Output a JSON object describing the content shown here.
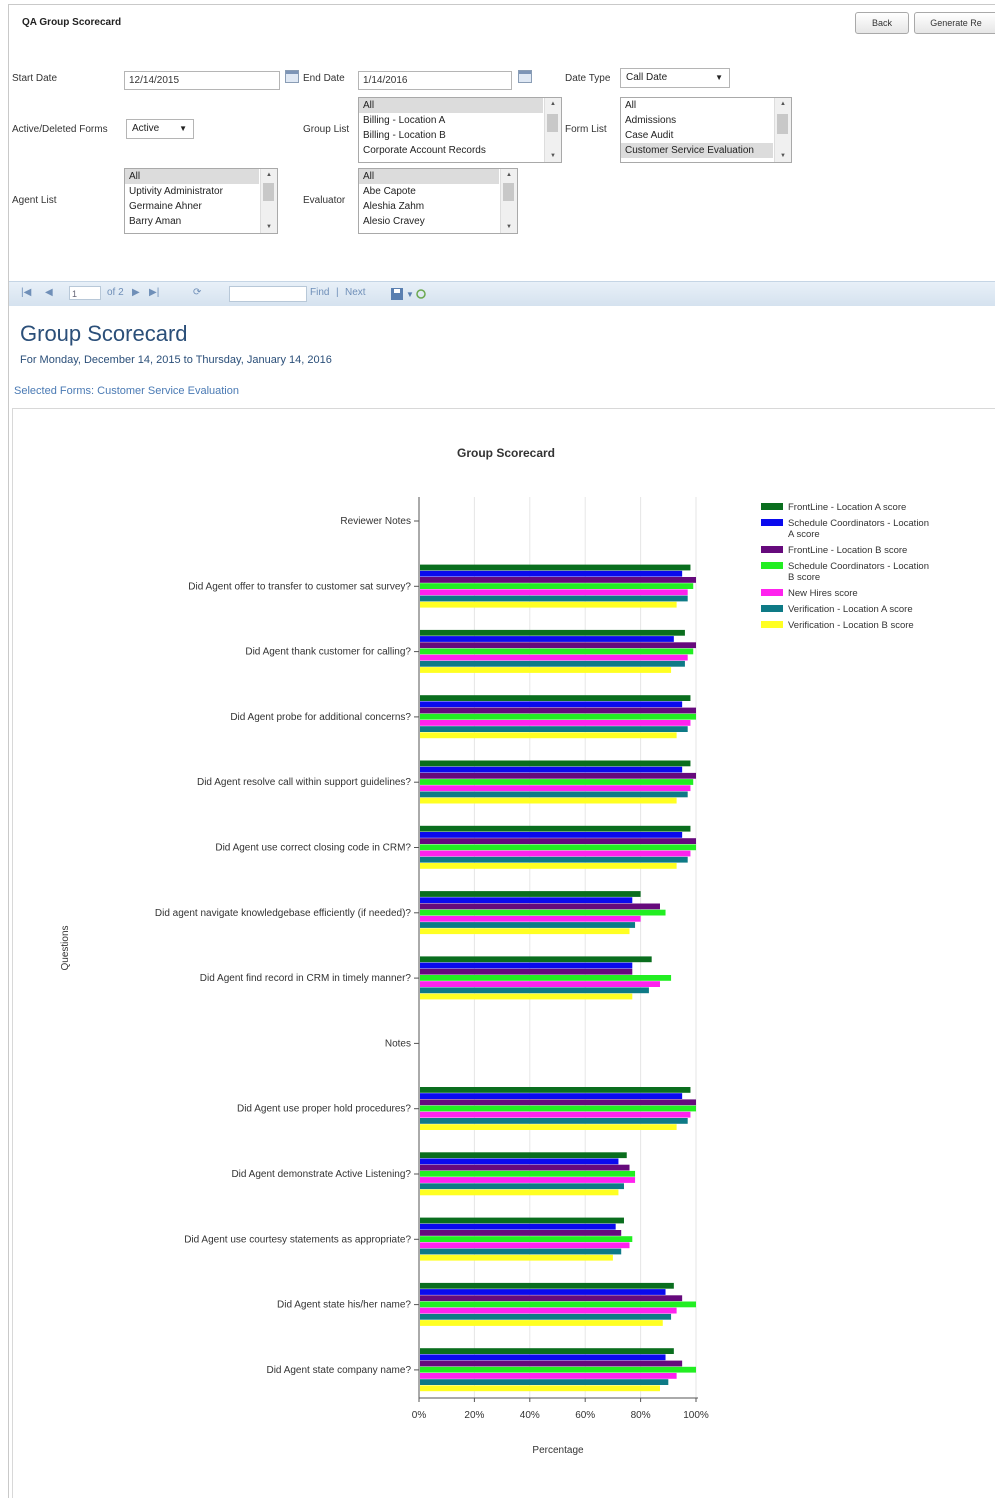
{
  "app": {
    "title": "QA Group Scorecard",
    "back_label": "Back",
    "generate_label": "Generate Re"
  },
  "filters": {
    "start_date_label": "Start Date",
    "start_date_value": "12/14/2015",
    "end_date_label": "End Date",
    "end_date_value": "1/14/2016",
    "date_type_label": "Date Type",
    "date_type_value": "Call Date",
    "active_forms_label": "Active/Deleted Forms",
    "active_forms_value": "Active",
    "group_list_label": "Group List",
    "group_list_options": [
      "All",
      "Billing - Location A",
      "Billing - Location B",
      "Corporate Account Records"
    ],
    "form_list_label": "Form List",
    "form_list_options": [
      "All",
      "Admissions",
      "Case Audit",
      "Customer Service Evaluation"
    ],
    "agent_list_label": "Agent List",
    "agent_list_options": [
      "All",
      "Uptivity Administrator",
      "Germaine Ahner",
      "Barry Aman"
    ],
    "evaluator_label": "Evaluator",
    "evaluator_options": [
      "All",
      "Abe Capote",
      "Aleshia Zahm",
      "Alesio Cravey"
    ]
  },
  "toolbar": {
    "first": "|◀",
    "prev": "◀",
    "page": "1",
    "of_label": "of 2",
    "next": "▶",
    "last": "▶|",
    "refresh": "⟳",
    "find_label": "Find",
    "sep": "|",
    "next_label": "Next",
    "export_icon": "save-icon",
    "refresh_icon": "refresh-icon"
  },
  "report": {
    "title": "Group Scorecard",
    "subtitle": "For Monday, December 14, 2015 to Thursday, January 14, 2016",
    "selected_forms": "Selected Forms: Customer Service Evaluation"
  },
  "chart_data": {
    "type": "bar",
    "orientation": "horizontal",
    "title": "Group Scorecard",
    "xlabel": "Percentage",
    "ylabel": "Questions",
    "xlim": [
      0,
      100
    ],
    "x_ticks": [
      "0%",
      "20%",
      "40%",
      "60%",
      "80%",
      "100%"
    ],
    "grid": "vertical",
    "legend": "top-right",
    "categories": [
      "Reviewer Notes",
      "Did Agent offer to transfer to customer sat survey?",
      "Did Agent thank customer for calling?",
      "Did Agent probe for additional concerns?",
      "Did Agent resolve call within support guidelines?",
      "Did Agent use correct closing code in CRM?",
      "Did agent navigate knowledgebase efficiently (if needed)?",
      "Did Agent find record in CRM in timely manner?",
      "Notes",
      "Did Agent use proper hold procedures?",
      "Did Agent demonstrate Active Listening?",
      "Did Agent use courtesy statements as appropriate?",
      "Did Agent state his/her name?",
      "Did Agent state company name?"
    ],
    "series": [
      {
        "name": "FrontLine - Location A score",
        "color": "#0a6e1e",
        "values": [
          0,
          98,
          96,
          98,
          98,
          98,
          80,
          84,
          0,
          98,
          75,
          74,
          92,
          92
        ]
      },
      {
        "name": "Schedule Coordinators - Location A score",
        "color": "#0a0aee",
        "values": [
          0,
          95,
          92,
          95,
          95,
          95,
          77,
          77,
          0,
          95,
          72,
          71,
          89,
          89
        ]
      },
      {
        "name": "FrontLine - Location B score",
        "color": "#660a7c",
        "values": [
          0,
          100,
          100,
          100,
          100,
          100,
          87,
          77,
          0,
          100,
          76,
          73,
          95,
          95
        ]
      },
      {
        "name": "Schedule Coordinators - Location B score",
        "color": "#22ee22",
        "values": [
          0,
          99,
          99,
          100,
          99,
          100,
          89,
          91,
          0,
          100,
          78,
          77,
          100,
          100
        ]
      },
      {
        "name": "New Hires score",
        "color": "#ff22ee",
        "values": [
          0,
          97,
          97,
          98,
          98,
          98,
          80,
          87,
          0,
          98,
          78,
          76,
          93,
          93
        ]
      },
      {
        "name": "Verification - Location A score",
        "color": "#0e7a86",
        "values": [
          0,
          97,
          96,
          97,
          97,
          97,
          78,
          83,
          0,
          97,
          74,
          73,
          91,
          90
        ]
      },
      {
        "name": "Verification - Location B score",
        "color": "#ffff22",
        "values": [
          0,
          93,
          91,
          93,
          93,
          93,
          76,
          77,
          0,
          93,
          72,
          70,
          88,
          87
        ]
      }
    ]
  }
}
